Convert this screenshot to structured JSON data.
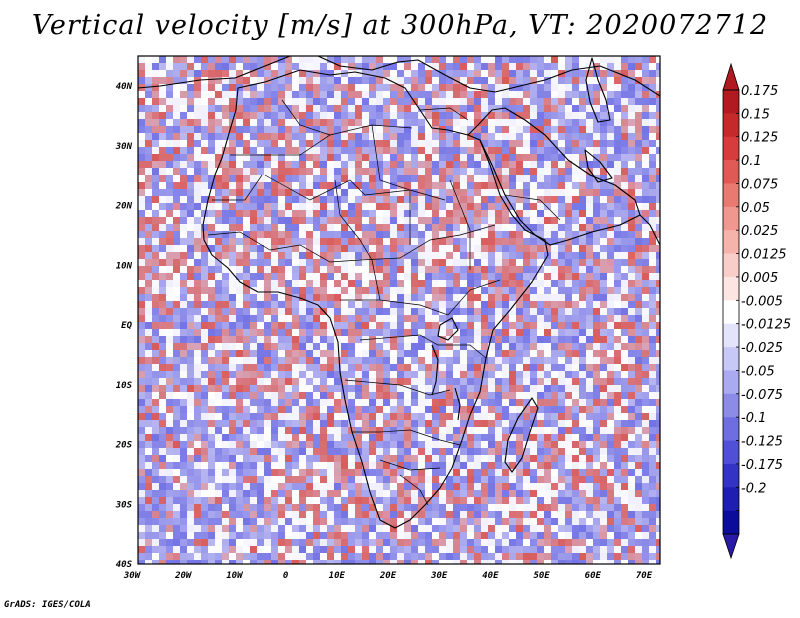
{
  "title": "Vertical velocity [m/s] at 300hPa, VT: 2020072712",
  "credit": "GrADS: IGES/COLA",
  "lon_labels": [
    "30W",
    "20W",
    "10W",
    "0",
    "10E",
    "20E",
    "30E",
    "40E",
    "50E",
    "60E",
    "70E"
  ],
  "lat_labels": [
    "40N",
    "30N",
    "20N",
    "10N",
    "EQ",
    "10S",
    "20S",
    "30S",
    "40S"
  ],
  "colorbar": {
    "labels": [
      "0.175",
      "0.15",
      "0.125",
      "0.1",
      "0.075",
      "0.05",
      "0.025",
      "0.0125",
      "0.005",
      "-0.005",
      "-0.0125",
      "-0.025",
      "-0.05",
      "-0.075",
      "-0.1",
      "-0.125",
      "-0.175",
      "-0.2"
    ],
    "colors": [
      "#b01a20",
      "#c52a2a",
      "#d43d3b",
      "#e05a55",
      "#e87a72",
      "#f0988f",
      "#f5b3ab",
      "#f9cec8",
      "#fde6e2",
      "#ffffff",
      "#e3e3fb",
      "#c8c8f6",
      "#aaaaf0",
      "#8c8ce8",
      "#6e6ee0",
      "#5050d6",
      "#3434c4",
      "#1e1eb0",
      "#0c0c9a"
    ],
    "arrow_top": "#b01a20",
    "arrow_bottom": "#2a1aa8"
  },
  "field_colors": {
    "up": "#d8453f",
    "down": "#5a5ae0",
    "white": "#ffffff"
  }
}
